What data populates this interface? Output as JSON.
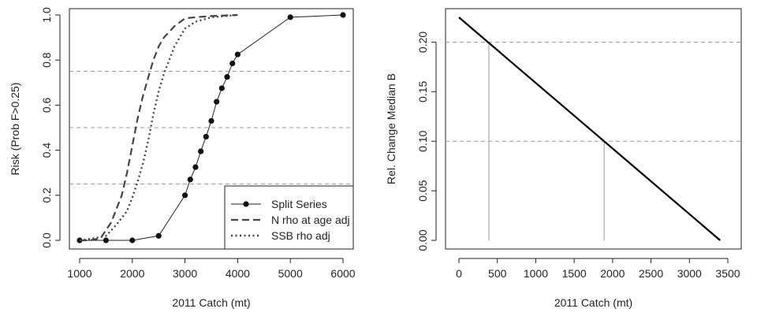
{
  "chart_data": [
    {
      "type": "line",
      "title": "",
      "xlabel": "2011 Catch (mt)",
      "ylabel": "Risk (Prob F>0.25)",
      "xlim": [
        1000,
        6000
      ],
      "ylim": [
        0,
        1
      ],
      "xticks": [
        1000,
        2000,
        3000,
        4000,
        5000,
        6000
      ],
      "yticks": [
        0.0,
        0.2,
        0.4,
        0.6,
        0.8,
        1.0
      ],
      "ytick_labels": [
        "0.0",
        "0.2",
        "0.4",
        "0.6",
        "0.8",
        "1.0"
      ],
      "grid": false,
      "reference_lines": {
        "axis": "y",
        "values": [
          0.25,
          0.5,
          0.75
        ],
        "style": "dashed",
        "color": "#999999"
      },
      "legend": {
        "position": "bottom-right",
        "entries": [
          "Split Series",
          "N rho at age adj",
          "SSB rho adj"
        ]
      },
      "series": [
        {
          "name": "Split Series",
          "style": "solid-markers",
          "color": "#222222",
          "x": [
            1000,
            1500,
            2000,
            2500,
            3000,
            3100,
            3200,
            3300,
            3400,
            3500,
            3600,
            3700,
            3800,
            3900,
            4000,
            5000,
            6000
          ],
          "y": [
            0.0,
            0.0,
            0.0,
            0.02,
            0.2,
            0.27,
            0.325,
            0.395,
            0.46,
            0.53,
            0.615,
            0.675,
            0.725,
            0.785,
            0.825,
            0.99,
            1.0
          ]
        },
        {
          "name": "N rho at age adj",
          "style": "dashed",
          "color": "#444444",
          "x": [
            1000,
            1200,
            1400,
            1600,
            1800,
            1900,
            2000,
            2100,
            2200,
            2300,
            2400,
            2500,
            2600,
            2700,
            2800,
            3000,
            3200,
            3500,
            4000
          ],
          "y": [
            0.0,
            0.0,
            0.01,
            0.08,
            0.2,
            0.3,
            0.42,
            0.54,
            0.64,
            0.72,
            0.8,
            0.86,
            0.9,
            0.925,
            0.95,
            0.985,
            0.99,
            0.995,
            1.0
          ]
        },
        {
          "name": "SSB rho adj",
          "style": "dotted",
          "color": "#444444",
          "x": [
            1000,
            1300,
            1500,
            1700,
            1900,
            2000,
            2100,
            2200,
            2300,
            2400,
            2500,
            2600,
            2700,
            2800,
            3000,
            3200,
            3500,
            4000
          ],
          "y": [
            0.0,
            0.01,
            0.02,
            0.07,
            0.13,
            0.19,
            0.26,
            0.34,
            0.44,
            0.56,
            0.66,
            0.74,
            0.8,
            0.86,
            0.94,
            0.97,
            0.99,
            1.0
          ]
        }
      ]
    },
    {
      "type": "line",
      "title": "",
      "xlabel": "2011 Catch (mt)",
      "ylabel": "Rel. Change Median B",
      "xlim": [
        0,
        3500
      ],
      "ylim": [
        0,
        0.225
      ],
      "xticks": [
        0,
        500,
        1000,
        1500,
        2000,
        2500,
        3000,
        3500
      ],
      "yticks": [
        0.0,
        0.05,
        0.1,
        0.15,
        0.2
      ],
      "ytick_labels": [
        "0.00",
        "0.05",
        "0.10",
        "0.15",
        "0.20"
      ],
      "grid": false,
      "reference_lines": {
        "axis": "y",
        "values": [
          0.1,
          0.2
        ],
        "style": "dashed",
        "color": "#999999"
      },
      "drop_lines": [
        {
          "x": 390,
          "y": 0.2
        },
        {
          "x": 1890,
          "y": 0.1
        }
      ],
      "series": [
        {
          "style": "solid",
          "color": "#000000",
          "x": [
            0,
            3400
          ],
          "y": [
            0.225,
            0.0
          ]
        }
      ]
    }
  ]
}
